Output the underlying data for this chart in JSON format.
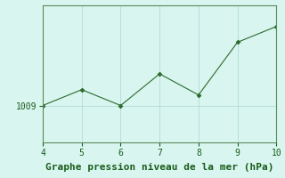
{
  "x": [
    4,
    5,
    6,
    7,
    8,
    9,
    10
  ],
  "y": [
    1009,
    1012,
    1009,
    1015,
    1011,
    1021,
    1024
  ],
  "line_color": "#2d6a2d",
  "marker_color": "#2d6a2d",
  "background_color": "#d8f5f0",
  "grid_color": "#b0ddd8",
  "xlabel": "Graphe pression niveau de la mer (hPa)",
  "xlabel_color": "#1a5c1a",
  "tick_color": "#1a5c1a",
  "spine_color": "#5a8a5a",
  "xlim": [
    4,
    10
  ],
  "ylim": [
    1002,
    1028
  ],
  "xticks": [
    4,
    5,
    6,
    7,
    8,
    9,
    10
  ],
  "ytick_value": 1009,
  "xlabel_fontsize": 8,
  "tick_fontsize": 7
}
